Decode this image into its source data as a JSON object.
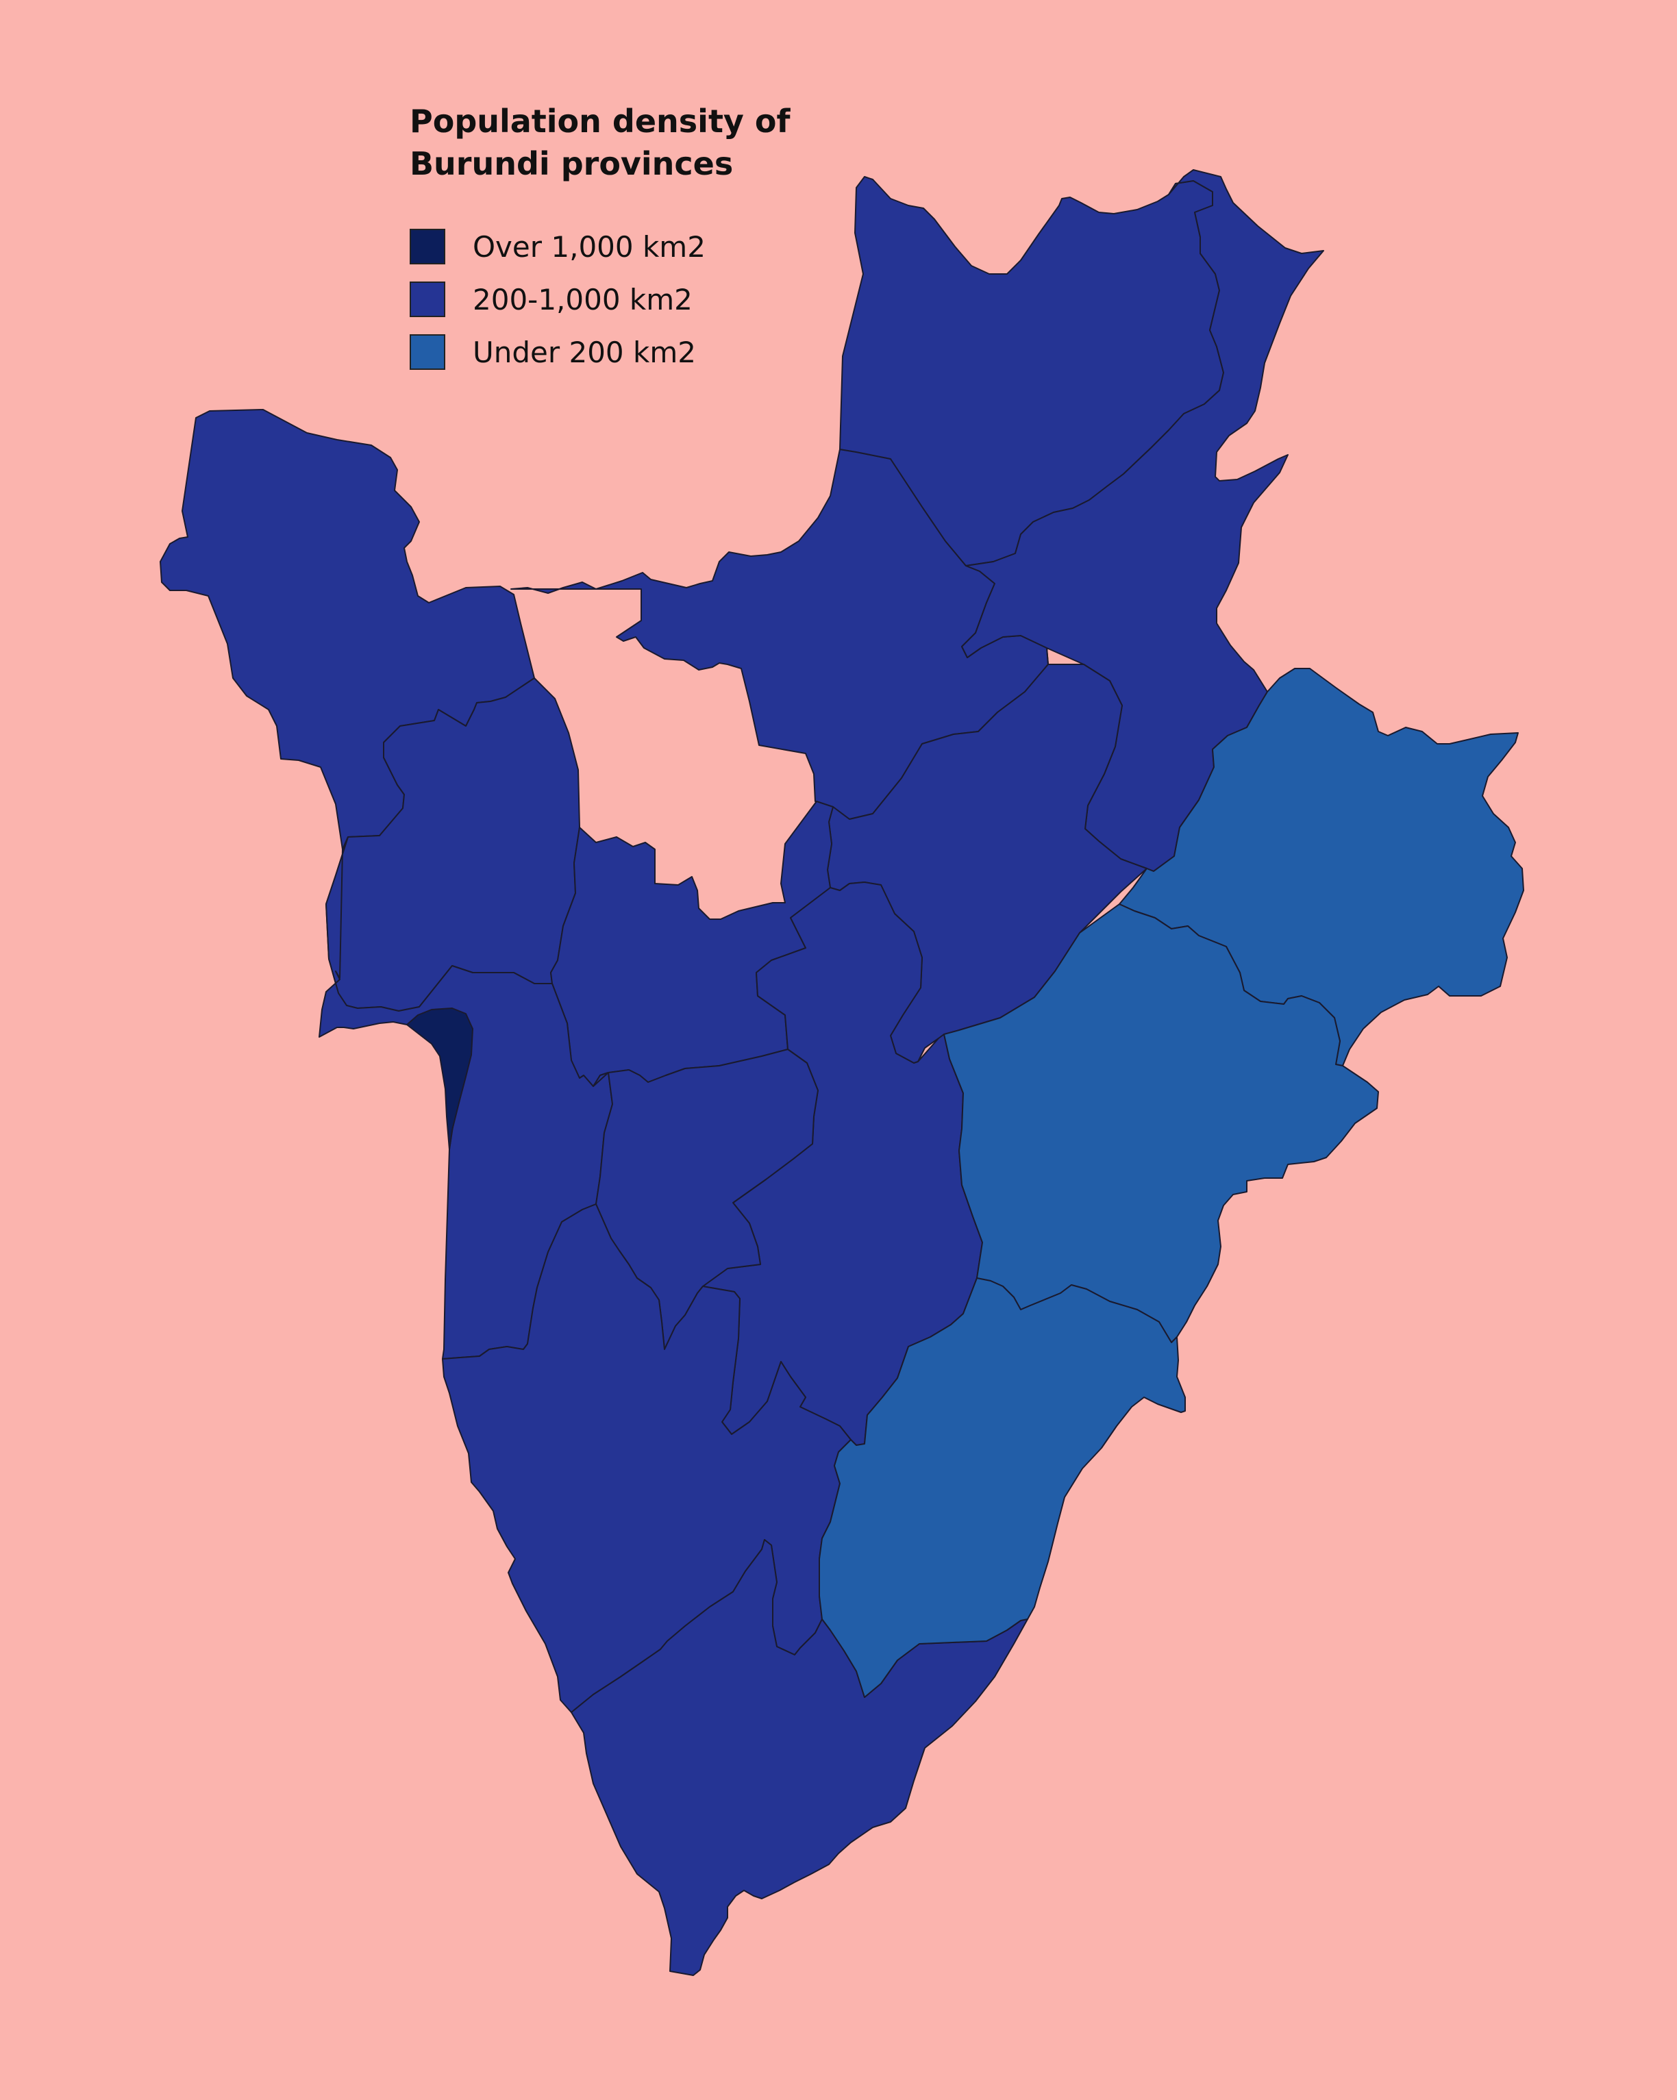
{
  "colors": {
    "background": "#FBB4AE",
    "over_1000": "#0C1E5B",
    "between_200_1000": "#253494",
    "under_200": "#225EA8",
    "border": "#1a1a2e"
  },
  "legend": {
    "title_line1": "Population density of",
    "title_line2": "Burundi provinces",
    "items": [
      {
        "label": "Over 1,000 km2",
        "color": "#0C1E5B"
      },
      {
        "label": "200-1,000 km2",
        "color": "#253494"
      },
      {
        "label": "Under 200 km2",
        "color": "#225EA8"
      }
    ]
  }
}
